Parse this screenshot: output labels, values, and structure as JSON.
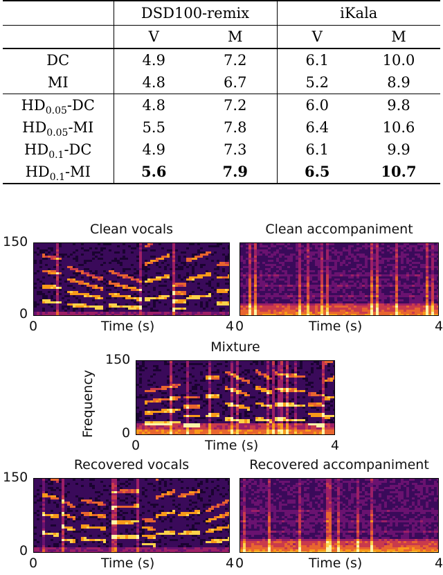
{
  "table": {
    "header_groups": [
      "DSD100-remix",
      "iKala"
    ],
    "sub_headers": [
      "V",
      "M",
      "V",
      "M"
    ],
    "rows": [
      {
        "method": "DC",
        "sub": "",
        "suffix": "",
        "values": [
          "4.9",
          "7.2",
          "6.1",
          "10.0"
        ],
        "bold": false
      },
      {
        "method": "MI",
        "sub": "",
        "suffix": "",
        "values": [
          "4.8",
          "6.7",
          "5.2",
          "8.9"
        ],
        "bold": false
      },
      {
        "method": "HD",
        "sub": "0.05",
        "suffix": "-DC",
        "values": [
          "4.8",
          "7.2",
          "6.0",
          "9.8"
        ],
        "bold": false
      },
      {
        "method": "HD",
        "sub": "0.05",
        "suffix": "-MI",
        "values": [
          "5.5",
          "7.8",
          "6.4",
          "10.6"
        ],
        "bold": false
      },
      {
        "method": "HD",
        "sub": "0.1",
        "suffix": "-DC",
        "values": [
          "4.9",
          "7.3",
          "6.1",
          "9.9"
        ],
        "bold": false
      },
      {
        "method": "HD",
        "sub": "0.1",
        "suffix": "-MI",
        "values": [
          "5.6",
          "7.9",
          "6.5",
          "10.7"
        ],
        "bold": true
      }
    ]
  },
  "figure": {
    "panels": {
      "clean_vocals": {
        "title": "Clean vocals",
        "y_max": "150",
        "y_min": "0",
        "x_min": "0",
        "x_label": "Time (s)",
        "x_max": "4"
      },
      "clean_accompaniment": {
        "title": "Clean accompaniment",
        "x_min": "0",
        "x_label": "Time (s)",
        "x_max": "4"
      },
      "mixture": {
        "title": "Mixture",
        "y_max": "150",
        "y_min": "0",
        "x_min": "0",
        "x_label": "Time (s)",
        "x_max": "4",
        "y_label": "Frequency"
      },
      "recovered_vocals": {
        "title": "Recovered vocals",
        "y_max": "150",
        "y_min": "0",
        "x_min": "0",
        "x_label": "Time (s)",
        "x_max": "4"
      },
      "recovered_accompaniment": {
        "title": "Recovered accompaniment",
        "x_min": "0",
        "x_label": "Time (s)",
        "x_max": "4"
      }
    },
    "colormap": [
      "#1a0330",
      "#3a0a5a",
      "#6a1270",
      "#9c1f66",
      "#c93a4c",
      "#e8652f",
      "#f89a1a",
      "#fcd24a",
      "#fcf5a8"
    ]
  }
}
